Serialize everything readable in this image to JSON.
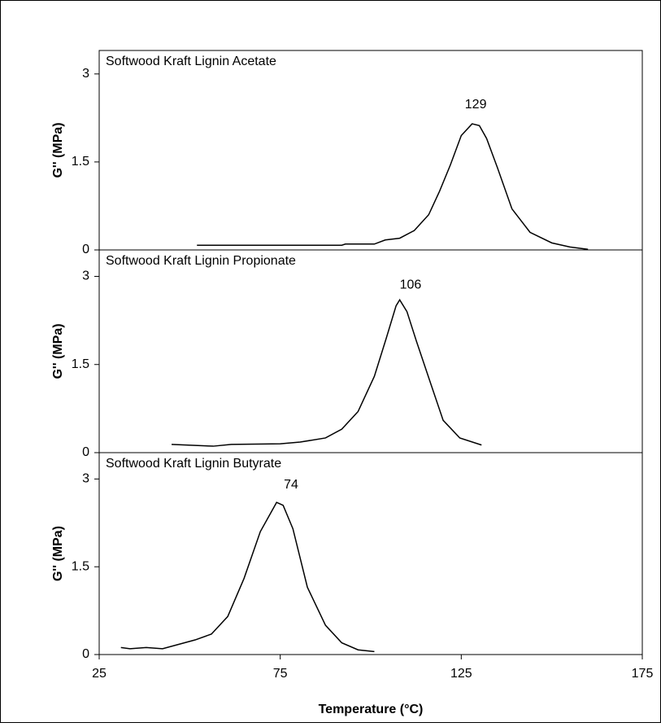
{
  "chart_data": [
    {
      "type": "line",
      "title": "Softwood Kraft Lignin Acetate",
      "ylabel": "G'' (MPa)",
      "color": "#000000",
      "x": [
        52,
        92,
        93,
        101,
        104,
        108,
        112,
        116,
        119,
        122,
        125,
        128,
        130,
        132,
        135,
        139,
        144,
        150,
        155,
        160
      ],
      "values": [
        0.08,
        0.08,
        0.1,
        0.1,
        0.17,
        0.2,
        0.33,
        0.6,
        1.0,
        1.45,
        1.95,
        2.15,
        2.12,
        1.9,
        1.4,
        0.7,
        0.3,
        0.12,
        0.05,
        0.01
      ],
      "xlim": [
        25,
        175
      ],
      "ylim": [
        0,
        3.4
      ],
      "yticks": [
        0,
        1.5,
        3
      ],
      "annotations": [
        {
          "label": "129",
          "x": 129,
          "y": 2.47
        }
      ]
    },
    {
      "type": "line",
      "title": "Softwood Kraft Lignin Propionate",
      "ylabel": "G'' (MPa)",
      "color": "#000000",
      "x": [
        45,
        56.5,
        61.5,
        75,
        80.5,
        87.5,
        92,
        96.5,
        101,
        104.3,
        107,
        108,
        110,
        112.6,
        116.7,
        120,
        124.6,
        130.6
      ],
      "values": [
        0.14,
        0.11,
        0.14,
        0.15,
        0.18,
        0.25,
        0.4,
        0.7,
        1.3,
        1.95,
        2.5,
        2.6,
        2.4,
        1.9,
        1.15,
        0.55,
        0.25,
        0.13
      ],
      "xlim": [
        25,
        175
      ],
      "ylim": [
        0,
        3.45
      ],
      "yticks": [
        0,
        1.5,
        3
      ],
      "annotations": [
        {
          "label": "106",
          "x": 111,
          "y": 2.85
        }
      ]
    },
    {
      "type": "line",
      "title": "Softwood Kraft Lignin Butyrate",
      "ylabel": "G'' (MPa)",
      "xlabel": "Temperature (°C)",
      "color": "#000000",
      "x": [
        31,
        33.5,
        38,
        42.5,
        51.5,
        56,
        60.5,
        65,
        69.5,
        74,
        75.8,
        78.5,
        82.5,
        87.5,
        92,
        96.5,
        101
      ],
      "values": [
        0.12,
        0.1,
        0.12,
        0.1,
        0.25,
        0.35,
        0.65,
        1.3,
        2.1,
        2.6,
        2.55,
        2.15,
        1.15,
        0.5,
        0.2,
        0.08,
        0.05
      ],
      "xlim": [
        25,
        175
      ],
      "ylim": [
        0,
        3.45
      ],
      "yticks": [
        0,
        1.5,
        3
      ],
      "xticks": [
        25,
        75,
        125,
        175
      ],
      "annotations": [
        {
          "label": "74",
          "x": 78,
          "y": 2.9
        }
      ]
    }
  ]
}
